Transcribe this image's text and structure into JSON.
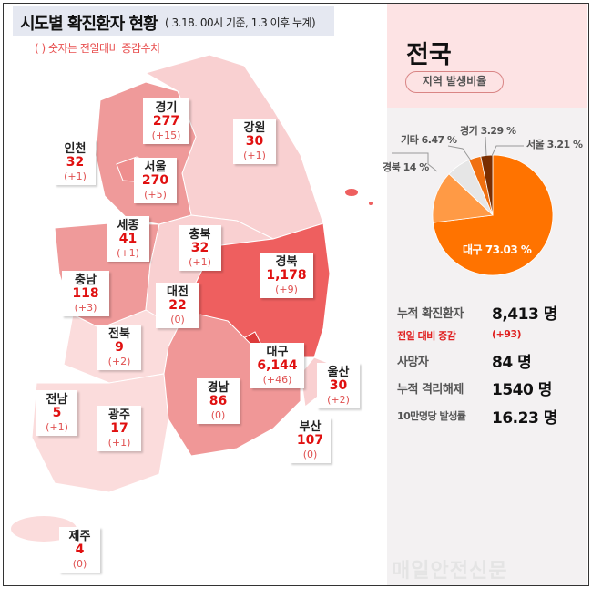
{
  "header": {
    "title": "시도별 확진환자 현황",
    "subtitle": "( 3.18. 00시 기준, 1.3 이후 누계)",
    "note": "( ) 숫자는 전일대비 증감수치"
  },
  "regions": [
    {
      "name": "경기",
      "value": "277",
      "delta": "(+15)",
      "color": "#ef9a9a"
    },
    {
      "name": "강원",
      "value": "30",
      "delta": "(+1)",
      "color": "#f9d0d1"
    },
    {
      "name": "인천",
      "value": "32",
      "delta": "(+1)",
      "color": "#f9d0d1"
    },
    {
      "name": "서울",
      "value": "270",
      "delta": "(+5)",
      "color": "#ef9a9a"
    },
    {
      "name": "세종",
      "value": "41",
      "delta": "(+1)",
      "color": "#f9d0d1"
    },
    {
      "name": "충북",
      "value": "32",
      "delta": "(+1)",
      "color": "#f9d0d1"
    },
    {
      "name": "경북",
      "value": "1,178",
      "delta": "(+9)",
      "color": "#ee5f5f"
    },
    {
      "name": "충남",
      "value": "118",
      "delta": "(+3)",
      "color": "#ef9a9a"
    },
    {
      "name": "대전",
      "value": "22",
      "delta": "(0)",
      "color": "#f9d0d1"
    },
    {
      "name": "전북",
      "value": "9",
      "delta": "(+2)",
      "color": "#fbdcdc"
    },
    {
      "name": "대구",
      "value": "6,144",
      "delta": "(+46)",
      "color": "#dd3b3b"
    },
    {
      "name": "울산",
      "value": "30",
      "delta": "(+2)",
      "color": "#f9d0d1"
    },
    {
      "name": "경남",
      "value": "86",
      "delta": "(0)",
      "color": "#f09797"
    },
    {
      "name": "전남",
      "value": "5",
      "delta": "(+1)",
      "color": "#fbdcdc"
    },
    {
      "name": "광주",
      "value": "17",
      "delta": "(+1)",
      "color": "#fbdcdc"
    },
    {
      "name": "부산",
      "value": "107",
      "delta": "(0)",
      "color": "#f09797"
    },
    {
      "name": "제주",
      "value": "4",
      "delta": "(0)",
      "color": "#fbdcdc"
    }
  ],
  "national": {
    "title": "전국",
    "pill": "지역 발생비율",
    "pie": [
      {
        "label": "대구",
        "value": 73.03,
        "text": "대구 73.03 %",
        "color": "#ff7300"
      },
      {
        "label": "경북",
        "value": 14,
        "text": "경북 14 %",
        "color": "#ff9a45"
      },
      {
        "label": "기타",
        "value": 6.47,
        "text": "기타 6.47 %",
        "color": "#e6e6e6"
      },
      {
        "label": "경기",
        "value": 3.29,
        "text": "경기 3.29 %",
        "color": "#f07010"
      },
      {
        "label": "서울",
        "value": 3.21,
        "text": "서울 3.21 %",
        "color": "#7a2e00"
      }
    ],
    "stats": [
      {
        "label": "누적 확진환자",
        "value": "8,413 명"
      },
      {
        "label": "전일 대비 증감",
        "value": "(+93)",
        "accent": "#e02020"
      },
      {
        "label": "사망자",
        "value": "84 명"
      },
      {
        "label": "누적 격리해제",
        "value": "1540 명"
      },
      {
        "label": "10만명당 발생률",
        "value": "16.23 명"
      }
    ]
  },
  "watermark": "매일안전신문"
}
